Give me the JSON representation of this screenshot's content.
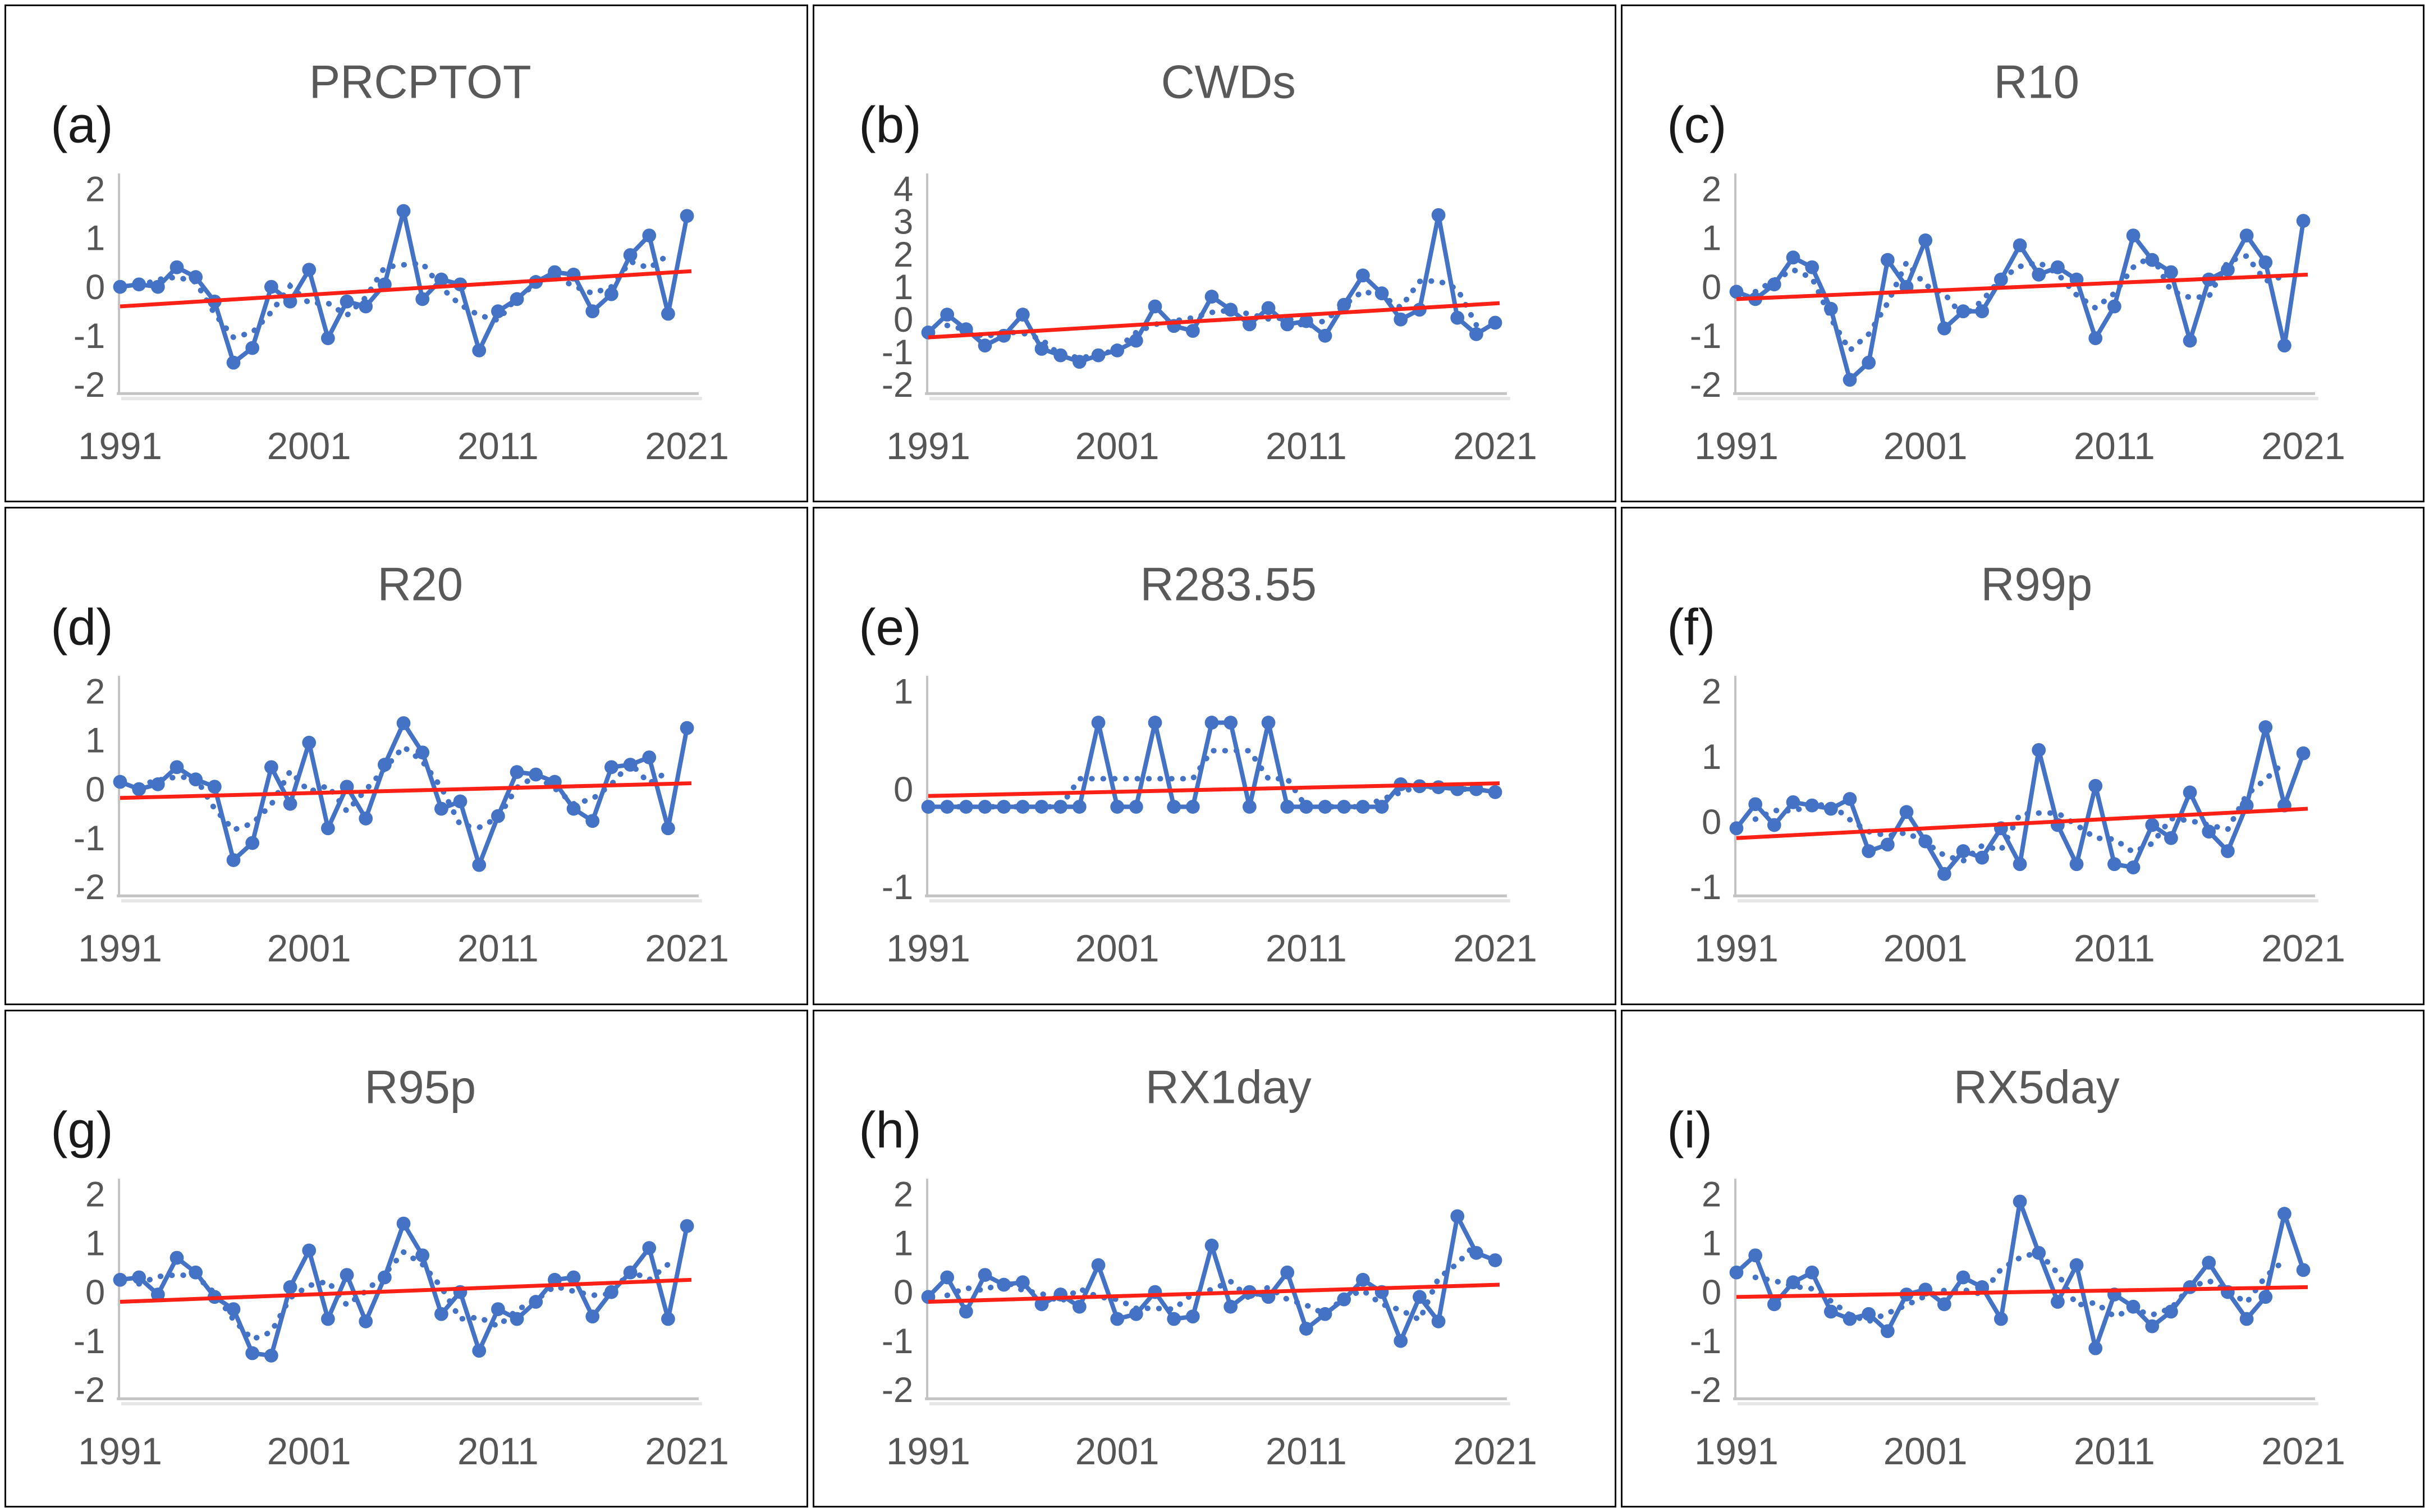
{
  "page": {
    "background": "#ffffff",
    "description": "3x3 grid of standardized precipitation extreme index anomaly time series, 1991-2021, each with annual series (blue markers), dotted smoothed series and red linear trend line"
  },
  "colors": {
    "series_blue": "#4472C4",
    "trend_red": "#FB2116",
    "title_gray": "#595959",
    "tick_gray": "#565656",
    "axis_line_gray": "#c3c3c3",
    "axis_shadow_gray": "#e7e7e7",
    "panel_border_black": "#0a0a0a"
  },
  "years": [
    1991,
    1992,
    1993,
    1994,
    1995,
    1996,
    1997,
    1998,
    1999,
    2000,
    2001,
    2002,
    2003,
    2004,
    2005,
    2006,
    2007,
    2008,
    2009,
    2010,
    2011,
    2012,
    2013,
    2014,
    2015,
    2016,
    2017,
    2018,
    2019,
    2020,
    2021
  ],
  "xticks": [
    1991,
    2001,
    2011,
    2021
  ],
  "dotted_series_note": "blue dotted line = 3-point centered moving average of the annual values",
  "chart_data": [
    {
      "id": "a",
      "label": "(a)",
      "title": "PRCPTOT",
      "type": "line",
      "xlabel": "",
      "ylabel": "",
      "yticks": [
        2,
        1,
        0,
        -1,
        -2
      ],
      "ylim": [
        -2.3,
        2.3
      ],
      "series": [
        {
          "name": "annual standardized anomaly",
          "values": [
            0.0,
            0.05,
            0.0,
            0.4,
            0.2,
            -0.3,
            -1.55,
            -1.25,
            0.0,
            -0.3,
            0.35,
            -1.05,
            -0.3,
            -0.4,
            0.05,
            1.55,
            -0.25,
            0.15,
            0.05,
            -1.3,
            -0.5,
            -0.25,
            0.1,
            0.3,
            0.25,
            -0.5,
            -0.15,
            0.65,
            1.05,
            -0.55,
            1.45
          ]
        },
        {
          "name": "smoothed (dotted)",
          "derived_from": "3-point centered moving average"
        }
      ],
      "trendline": {
        "name": "linear trend",
        "y_start": -0.4,
        "y_end": 0.32
      }
    },
    {
      "id": "b",
      "label": "(b)",
      "title": "CWDs",
      "type": "line",
      "xlabel": "",
      "ylabel": "",
      "yticks": [
        4,
        3,
        2,
        1,
        0,
        -1,
        -2
      ],
      "ylim": [
        -2.3,
        4.3
      ],
      "series": [
        {
          "name": "annual standardized anomaly",
          "values": [
            -0.4,
            0.15,
            -0.3,
            -0.8,
            -0.5,
            0.15,
            -0.9,
            -1.1,
            -1.3,
            -1.1,
            -0.95,
            -0.65,
            0.4,
            -0.2,
            -0.35,
            0.7,
            0.3,
            -0.15,
            0.35,
            -0.15,
            -0.05,
            -0.5,
            0.45,
            1.35,
            0.8,
            0.0,
            0.3,
            3.2,
            0.05,
            -0.45,
            -0.1
          ]
        },
        {
          "name": "smoothed (dotted)",
          "derived_from": "3-point centered moving average"
        }
      ],
      "trendline": {
        "name": "linear trend",
        "y_start": -0.55,
        "y_end": 0.5
      }
    },
    {
      "id": "c",
      "label": "(c)",
      "title": "R10",
      "type": "line",
      "xlabel": "",
      "ylabel": "",
      "yticks": [
        2,
        1,
        0,
        -1,
        -2
      ],
      "ylim": [
        -2.3,
        2.3
      ],
      "series": [
        {
          "name": "annual standardized anomaly",
          "values": [
            -0.1,
            -0.25,
            0.05,
            0.6,
            0.4,
            -0.45,
            -1.9,
            -1.55,
            0.55,
            0.0,
            0.95,
            -0.85,
            -0.5,
            -0.5,
            0.15,
            0.85,
            0.25,
            0.4,
            0.15,
            -1.05,
            -0.4,
            1.05,
            0.55,
            0.3,
            -1.1,
            0.15,
            0.35,
            1.05,
            0.5,
            -1.2,
            1.35
          ]
        },
        {
          "name": "smoothed (dotted)",
          "derived_from": "3-point centered moving average"
        }
      ],
      "trendline": {
        "name": "linear trend",
        "y_start": -0.25,
        "y_end": 0.25
      }
    },
    {
      "id": "d",
      "label": "(d)",
      "title": "R20",
      "type": "line",
      "xlabel": "",
      "ylabel": "",
      "yticks": [
        2,
        1,
        0,
        -1,
        -2
      ],
      "ylim": [
        -2.3,
        2.3
      ],
      "series": [
        {
          "name": "annual standardized anomaly",
          "values": [
            0.15,
            0.0,
            0.1,
            0.45,
            0.2,
            0.05,
            -1.45,
            -1.1,
            0.45,
            -0.3,
            0.95,
            -0.8,
            0.05,
            -0.6,
            0.5,
            1.35,
            0.75,
            -0.4,
            -0.25,
            -1.55,
            -0.55,
            0.35,
            0.3,
            0.15,
            -0.4,
            -0.65,
            0.45,
            0.5,
            0.65,
            -0.8,
            1.25
          ]
        },
        {
          "name": "smoothed (dotted)",
          "derived_from": "3-point centered moving average"
        }
      ],
      "trendline": {
        "name": "linear trend",
        "y_start": -0.18,
        "y_end": 0.12
      }
    },
    {
      "id": "e",
      "label": "(e)",
      "title": "R283.55",
      "type": "line",
      "xlabel": "",
      "ylabel": "",
      "yticks": [
        1,
        0,
        -1
      ],
      "ylim": [
        -1.15,
        1.15
      ],
      "series": [
        {
          "name": "annual standardized anomaly",
          "values": [
            -0.18,
            -0.18,
            -0.18,
            -0.18,
            -0.18,
            -0.18,
            -0.18,
            -0.18,
            -0.18,
            0.68,
            -0.18,
            -0.18,
            0.68,
            -0.18,
            -0.18,
            0.68,
            0.68,
            -0.18,
            0.68,
            -0.18,
            -0.18,
            -0.18,
            -0.18,
            -0.18,
            -0.18,
            0.05,
            0.03,
            0.02,
            0.0,
            0.0,
            -0.03
          ]
        },
        {
          "name": "smoothed (dotted)",
          "derived_from": "3-point centered moving average"
        }
      ],
      "trendline": {
        "name": "linear trend",
        "y_start": -0.07,
        "y_end": 0.06
      }
    },
    {
      "id": "f",
      "label": "(f)",
      "title": "R99p",
      "type": "line",
      "xlabel": "",
      "ylabel": "",
      "yticks": [
        2,
        1,
        0,
        -1
      ],
      "ylim": [
        -1.15,
        2.3
      ],
      "series": [
        {
          "name": "annual standardized anomaly",
          "values": [
            -0.1,
            0.27,
            -0.05,
            0.3,
            0.25,
            0.2,
            0.35,
            -0.45,
            -0.35,
            0.15,
            -0.3,
            -0.8,
            -0.45,
            -0.55,
            -0.1,
            -0.65,
            1.1,
            -0.05,
            -0.65,
            0.55,
            -0.65,
            -0.7,
            -0.05,
            -0.25,
            0.45,
            -0.15,
            -0.45,
            0.25,
            1.45,
            0.25,
            1.05
          ]
        },
        {
          "name": "smoothed (dotted)",
          "derived_from": "3-point centered moving average"
        }
      ],
      "trendline": {
        "name": "linear trend",
        "y_start": -0.25,
        "y_end": 0.2
      }
    },
    {
      "id": "g",
      "label": "(g)",
      "title": "R95p",
      "type": "line",
      "xlabel": "",
      "ylabel": "",
      "yticks": [
        2,
        1,
        0,
        -1,
        -2
      ],
      "ylim": [
        -2.3,
        2.3
      ],
      "series": [
        {
          "name": "annual standardized anomaly",
          "values": [
            0.25,
            0.3,
            -0.05,
            0.7,
            0.4,
            -0.1,
            -0.35,
            -1.25,
            -1.3,
            0.1,
            0.85,
            -0.55,
            0.35,
            -0.6,
            0.3,
            1.4,
            0.75,
            -0.45,
            0.0,
            -1.2,
            -0.35,
            -0.55,
            -0.2,
            0.25,
            0.3,
            -0.5,
            0.0,
            0.4,
            0.9,
            -0.55,
            1.35
          ]
        },
        {
          "name": "smoothed (dotted)",
          "derived_from": "3-point centered moving average"
        }
      ],
      "trendline": {
        "name": "linear trend",
        "y_start": -0.2,
        "y_end": 0.25
      }
    },
    {
      "id": "h",
      "label": "(h)",
      "title": "RX1day",
      "type": "line",
      "xlabel": "",
      "ylabel": "",
      "yticks": [
        2,
        1,
        0,
        -1,
        -2
      ],
      "ylim": [
        -2.3,
        2.3
      ],
      "series": [
        {
          "name": "annual standardized anomaly",
          "values": [
            -0.1,
            0.3,
            -0.4,
            0.35,
            0.15,
            0.2,
            -0.25,
            -0.05,
            -0.3,
            0.55,
            -0.55,
            -0.45,
            0.0,
            -0.55,
            -0.5,
            0.95,
            -0.3,
            0.0,
            -0.1,
            0.4,
            -0.75,
            -0.45,
            -0.15,
            0.25,
            0.0,
            -1.0,
            -0.1,
            -0.6,
            1.55,
            0.8,
            0.65
          ]
        },
        {
          "name": "smoothed (dotted)",
          "derived_from": "3-point centered moving average"
        }
      ],
      "trendline": {
        "name": "linear trend",
        "y_start": -0.2,
        "y_end": 0.15
      }
    },
    {
      "id": "i",
      "label": "(i)",
      "title": "RX5day",
      "type": "line",
      "xlabel": "",
      "ylabel": "",
      "yticks": [
        2,
        1,
        0,
        -1,
        -2
      ],
      "ylim": [
        -2.3,
        2.3
      ],
      "series": [
        {
          "name": "annual standardized anomaly",
          "values": [
            0.4,
            0.75,
            -0.25,
            0.2,
            0.4,
            -0.4,
            -0.55,
            -0.45,
            -0.8,
            -0.05,
            0.05,
            -0.25,
            0.3,
            0.1,
            -0.55,
            1.85,
            0.8,
            -0.2,
            0.55,
            -1.15,
            -0.05,
            -0.3,
            -0.7,
            -0.4,
            0.1,
            0.6,
            0.0,
            -0.55,
            -0.1,
            1.6,
            0.45
          ]
        },
        {
          "name": "smoothed (dotted)",
          "derived_from": "3-point centered moving average"
        }
      ],
      "trendline": {
        "name": "linear trend",
        "y_start": -0.1,
        "y_end": 0.1
      }
    }
  ]
}
